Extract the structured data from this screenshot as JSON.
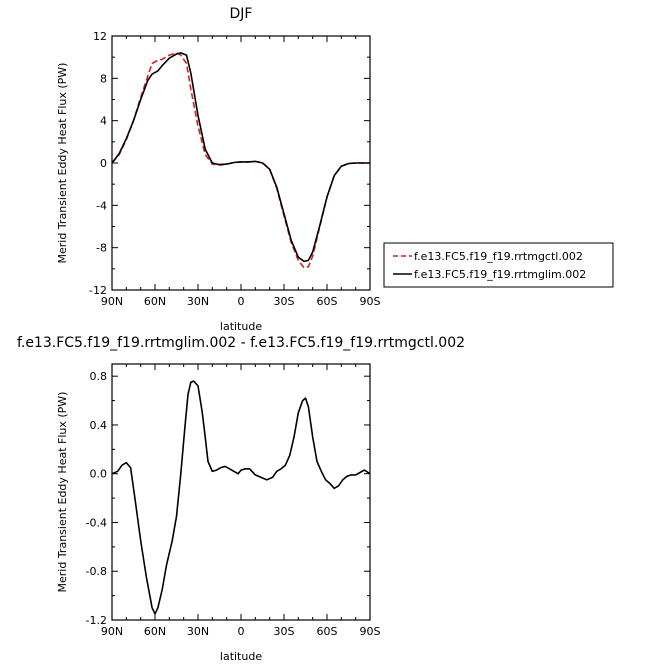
{
  "chart_data": [
    {
      "type": "line",
      "title": "DJF",
      "xlabel": "latitude",
      "ylabel": "Merid Transient Eddy Heat Flux (PW)",
      "xlim": [
        90,
        -90
      ],
      "ylim": [
        -12,
        12
      ],
      "x_ticks": [
        90,
        60,
        30,
        0,
        -30,
        -60,
        -90
      ],
      "x_tick_labels": [
        "90N",
        "60N",
        "30N",
        "0",
        "30S",
        "60S",
        "90S"
      ],
      "y_ticks": [
        12,
        8,
        4,
        0,
        -4,
        -8,
        -12
      ],
      "y_tick_labels": [
        "12",
        "8",
        "4",
        "0",
        "-4",
        "-8",
        "-12"
      ],
      "legend_position": "right",
      "series": [
        {
          "name": "f.e13.FC5.f19_f19.rrtmgctl.002",
          "color": "#d62020",
          "dash": "dashed",
          "x": [
            90,
            85,
            80,
            75,
            70,
            65,
            62,
            58,
            55,
            50,
            45,
            42,
            38,
            35,
            30,
            25,
            20,
            15,
            10,
            5,
            0,
            -5,
            -10,
            -15,
            -20,
            -25,
            -30,
            -35,
            -40,
            -44,
            -47,
            -50,
            -55,
            -60,
            -65,
            -70,
            -75,
            -80,
            -85,
            -90
          ],
          "y": [
            0,
            0.8,
            2.2,
            4.0,
            6.2,
            8.2,
            9.4,
            9.7,
            9.8,
            10.2,
            10.4,
            10.2,
            9.4,
            7.0,
            3.5,
            0.8,
            -0.1,
            -0.2,
            -0.1,
            0.05,
            0.1,
            0.1,
            0.15,
            0.05,
            -0.6,
            -2.4,
            -5.0,
            -7.5,
            -9.2,
            -9.9,
            -9.8,
            -8.8,
            -6.0,
            -3.2,
            -1.2,
            -0.3,
            -0.05,
            0,
            0,
            0
          ]
        },
        {
          "name": "f.e13.FC5.f19_f19.rrtmglim.002",
          "color": "#000000",
          "dash": "solid",
          "x": [
            90,
            85,
            80,
            75,
            70,
            65,
            62,
            58,
            55,
            50,
            45,
            42,
            38,
            35,
            30,
            25,
            20,
            15,
            10,
            5,
            0,
            -5,
            -10,
            -15,
            -20,
            -25,
            -30,
            -35,
            -40,
            -44,
            -47,
            -50,
            -55,
            -60,
            -65,
            -70,
            -75,
            -80,
            -85,
            -90
          ],
          "y": [
            0,
            0.9,
            2.3,
            4.0,
            6.0,
            7.8,
            8.4,
            8.7,
            9.2,
            9.9,
            10.3,
            10.4,
            10.2,
            8.5,
            4.5,
            1.3,
            0.0,
            -0.15,
            -0.1,
            0.05,
            0.1,
            0.1,
            0.15,
            0.0,
            -0.6,
            -2.3,
            -4.8,
            -7.3,
            -8.9,
            -9.3,
            -9.2,
            -8.4,
            -5.9,
            -3.2,
            -1.2,
            -0.3,
            -0.05,
            0,
            0,
            0
          ]
        }
      ]
    },
    {
      "type": "line",
      "title": "f.e13.FC5.f19_f19.rrtmglim.002 - f.e13.FC5.f19_f19.rrtmgctl.002",
      "xlabel": "latitude",
      "ylabel": "Merid Transient Eddy Heat Flux (PW)",
      "xlim": [
        90,
        -90
      ],
      "ylim": [
        -1.2,
        0.9
      ],
      "x_ticks": [
        90,
        60,
        30,
        0,
        -30,
        -60,
        -90
      ],
      "x_tick_labels": [
        "90N",
        "60N",
        "30N",
        "0",
        "30S",
        "60S",
        "90S"
      ],
      "y_ticks": [
        0.8,
        0.4,
        0.0,
        -0.4,
        -0.8,
        -1.2
      ],
      "y_tick_labels": [
        "0.8",
        "0.4",
        "0.0",
        "-0.4",
        "-0.8",
        "-1.2"
      ],
      "series": [
        {
          "color": "#000000",
          "dash": "solid",
          "x": [
            90,
            86,
            83,
            80,
            77,
            74,
            70,
            66,
            62,
            60,
            58,
            55,
            52,
            48,
            45,
            42,
            39,
            37,
            35,
            33,
            30,
            27,
            25,
            23,
            20,
            17,
            14,
            11,
            8,
            5,
            2,
            0,
            -3,
            -6,
            -10,
            -14,
            -18,
            -22,
            -25,
            -28,
            -31,
            -34,
            -37,
            -40,
            -43,
            -45,
            -47,
            -50,
            -53,
            -56,
            -59,
            -62,
            -65,
            -68,
            -71,
            -74,
            -77,
            -80,
            -83,
            -86,
            -90
          ],
          "y": [
            0.0,
            0.02,
            0.07,
            0.09,
            0.05,
            -0.2,
            -0.55,
            -0.85,
            -1.1,
            -1.15,
            -1.1,
            -0.95,
            -0.75,
            -0.55,
            -0.35,
            0.0,
            0.4,
            0.65,
            0.75,
            0.76,
            0.72,
            0.5,
            0.3,
            0.1,
            0.02,
            0.03,
            0.05,
            0.06,
            0.04,
            0.02,
            0.0,
            0.03,
            0.04,
            0.04,
            -0.01,
            -0.03,
            -0.05,
            -0.03,
            0.02,
            0.04,
            0.07,
            0.15,
            0.3,
            0.5,
            0.6,
            0.62,
            0.55,
            0.3,
            0.1,
            0.02,
            -0.05,
            -0.08,
            -0.12,
            -0.1,
            -0.05,
            -0.02,
            -0.01,
            -0.01,
            0.01,
            0.03,
            0.0
          ]
        }
      ]
    }
  ]
}
